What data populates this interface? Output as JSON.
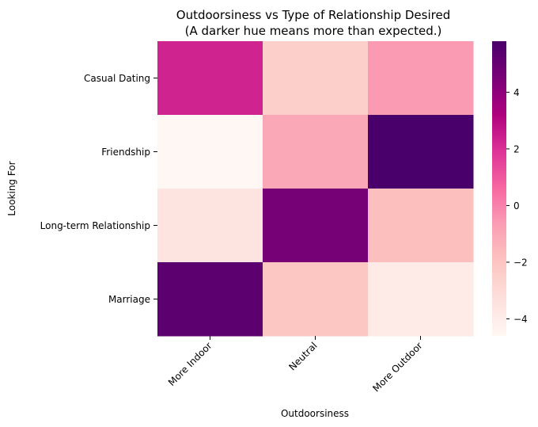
{
  "chart_data": {
    "type": "heatmap",
    "title": "Outdoorsiness vs Type of Relationship Desired",
    "subtitle": "(A darker hue means more than expected.)",
    "xlabel": "Outdoorsiness",
    "ylabel": "Looking For",
    "x_categories": [
      "More Indoor",
      "Neutral",
      "More Outdoor"
    ],
    "y_categories": [
      "Casual Dating",
      "Friendship",
      "Long-term Relationship",
      "Marriage"
    ],
    "values": [
      [
        2.3,
        -2.5,
        -0.6
      ],
      [
        -4.6,
        -1.0,
        5.8
      ],
      [
        -3.5,
        4.6,
        -1.8
      ],
      [
        5.3,
        -2.1,
        -3.9
      ]
    ],
    "colorbar": {
      "vmin": -4.6,
      "vmax": 5.8,
      "ticks": [
        -4,
        -2,
        0,
        2,
        4
      ],
      "tick_labels": [
        "−4",
        "−2",
        "0",
        "2",
        "4"
      ]
    },
    "colormap": "RdPu",
    "colormap_stops": [
      "#fff7f3",
      "#fde0dd",
      "#fcc5c0",
      "#fa9fb5",
      "#f768a1",
      "#dd3497",
      "#ae017e",
      "#7a0177",
      "#49006a"
    ],
    "grid": false
  }
}
